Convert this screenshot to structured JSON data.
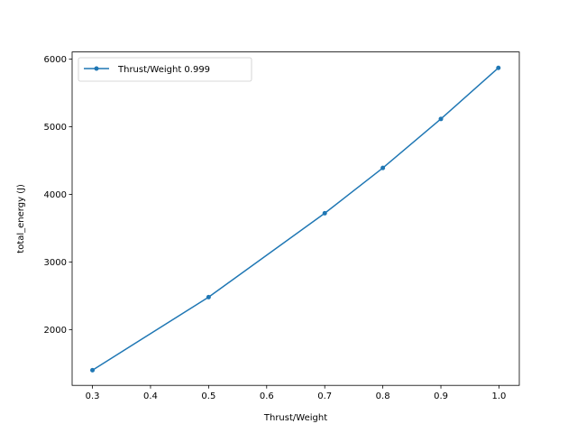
{
  "chart_data": {
    "type": "line",
    "title": "",
    "xlabel": "Thrust/Weight",
    "ylabel": "total_energy (J)",
    "xlim": [
      0.265,
      1.035
    ],
    "ylim": [
      1175,
      6105
    ],
    "xticks": [
      0.3,
      0.4,
      0.5,
      0.6,
      0.7,
      0.8,
      0.9,
      1.0
    ],
    "xtick_labels": [
      "0.3",
      "0.4",
      "0.5",
      "0.6",
      "0.7",
      "0.8",
      "0.9",
      "1.0"
    ],
    "yticks": [
      2000,
      3000,
      4000,
      5000,
      6000
    ],
    "ytick_labels": [
      "2000",
      "3000",
      "4000",
      "5000",
      "6000"
    ],
    "grid": false,
    "legend_position": "top-left",
    "series": [
      {
        "name": "Thrust/Weight 0.999",
        "color": "#1f77b4",
        "marker": "circle",
        "x": [
          0.3,
          0.5,
          0.7,
          0.8,
          0.9,
          0.999
        ],
        "y": [
          1400,
          2480,
          3720,
          4390,
          5115,
          5870
        ]
      }
    ]
  }
}
